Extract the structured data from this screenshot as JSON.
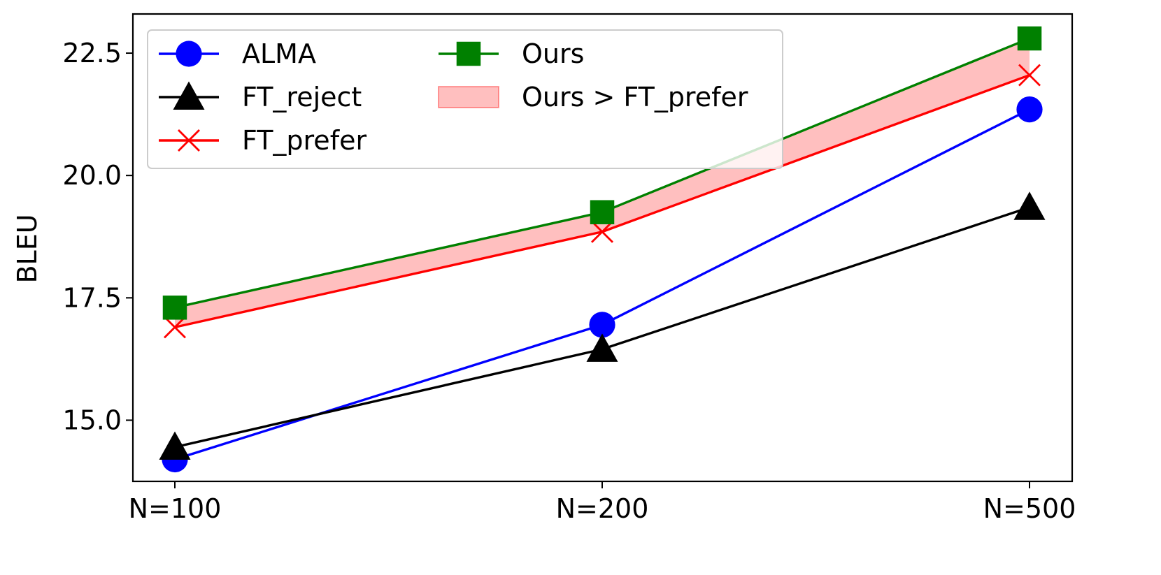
{
  "chart_data": {
    "type": "line",
    "title": "",
    "xlabel": "",
    "ylabel": "BLEU",
    "categories": [
      "N=100",
      "N=200",
      "N=500"
    ],
    "ylim": [
      13.75,
      23.3
    ],
    "yticks": [
      15.0,
      17.5,
      20.0,
      22.5
    ],
    "ytick_labels": [
      "15.0",
      "17.5",
      "20.0",
      "22.5"
    ],
    "grid": false,
    "legend_position": "top-left",
    "series": [
      {
        "name": "ALMA",
        "values": [
          14.2,
          16.95,
          21.35
        ],
        "color": "#0000ff",
        "marker": "circle"
      },
      {
        "name": "FT_reject",
        "values": [
          14.45,
          16.45,
          19.35
        ],
        "color": "#000000",
        "marker": "triangle"
      },
      {
        "name": "FT_prefer",
        "values": [
          16.9,
          18.85,
          22.05
        ],
        "color": "#ff0000",
        "marker": "x"
      },
      {
        "name": "Ours",
        "values": [
          17.3,
          19.25,
          22.8
        ],
        "color": "#008000",
        "marker": "square"
      }
    ],
    "fill": {
      "name": "Ours > FT_prefer",
      "upper": "Ours",
      "lower": "FT_prefer",
      "color": "#ff0000",
      "opacity": 0.25
    },
    "legend": {
      "columns": [
        [
          "ALMA",
          "FT_reject",
          "FT_prefer"
        ],
        [
          "Ours",
          "Ours > FT_prefer"
        ]
      ]
    }
  }
}
